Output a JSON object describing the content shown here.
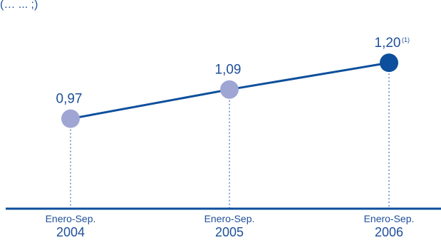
{
  "header": {
    "fragment": "(… ... ;)"
  },
  "chart_data": {
    "type": "line",
    "categories": [
      {
        "line1": "Enero-Sep.",
        "line2": "2004"
      },
      {
        "line1": "Enero-Sep.",
        "line2": "2005"
      },
      {
        "line1": "Enero-Sep.",
        "line2": "2006"
      }
    ],
    "values": [
      0.97,
      1.09,
      1.2
    ],
    "value_labels": [
      "0,97",
      "1,09",
      "1,20"
    ],
    "value_notes": [
      "",
      "",
      "(1)"
    ],
    "ylim": [
      0.6,
      1.3
    ],
    "grid": false,
    "colors": {
      "line": "#0d4f9c",
      "axis": "#0d4f9c",
      "marker_past": "#9fa6d4",
      "marker_current": "#0d4f9c",
      "text": "#1f4f9a"
    }
  }
}
